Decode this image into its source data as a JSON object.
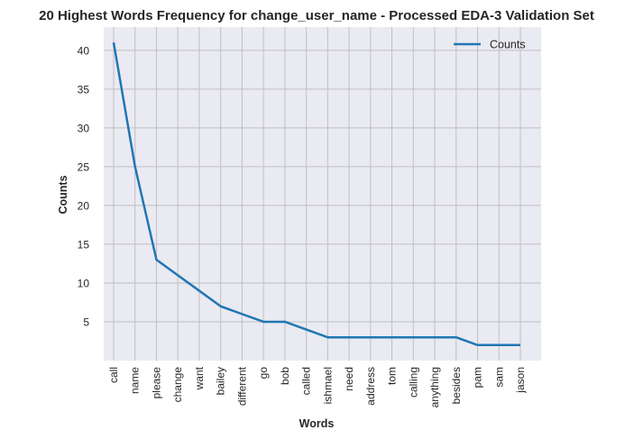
{
  "chart_data": {
    "type": "line",
    "title": "20 Highest Words Frequency for change_user_name - Processed EDA-3 Validation Set",
    "xlabel": "Words",
    "ylabel": "Counts",
    "categories": [
      "call",
      "name",
      "please",
      "change",
      "want",
      "bailey",
      "different",
      "go",
      "bob",
      "called",
      "ishmael",
      "need",
      "address",
      "tom",
      "calling",
      "anything",
      "besides",
      "pam",
      "sam",
      "jason"
    ],
    "series": [
      {
        "name": "Counts",
        "color": "#1f77b4",
        "values": [
          41,
          25,
          13,
          11,
          9,
          7,
          6,
          5,
          5,
          4,
          3,
          3,
          3,
          3,
          3,
          3,
          3,
          2,
          2,
          2
        ]
      }
    ],
    "yticks": [
      5,
      10,
      15,
      20,
      25,
      30,
      35,
      40
    ],
    "ylim": [
      0,
      43
    ],
    "grid": true,
    "legend_position": "top-right",
    "colors": {
      "plot_background": "#eaeaf2",
      "grid": "#bfbfc4",
      "line": "#1f77b4"
    }
  }
}
